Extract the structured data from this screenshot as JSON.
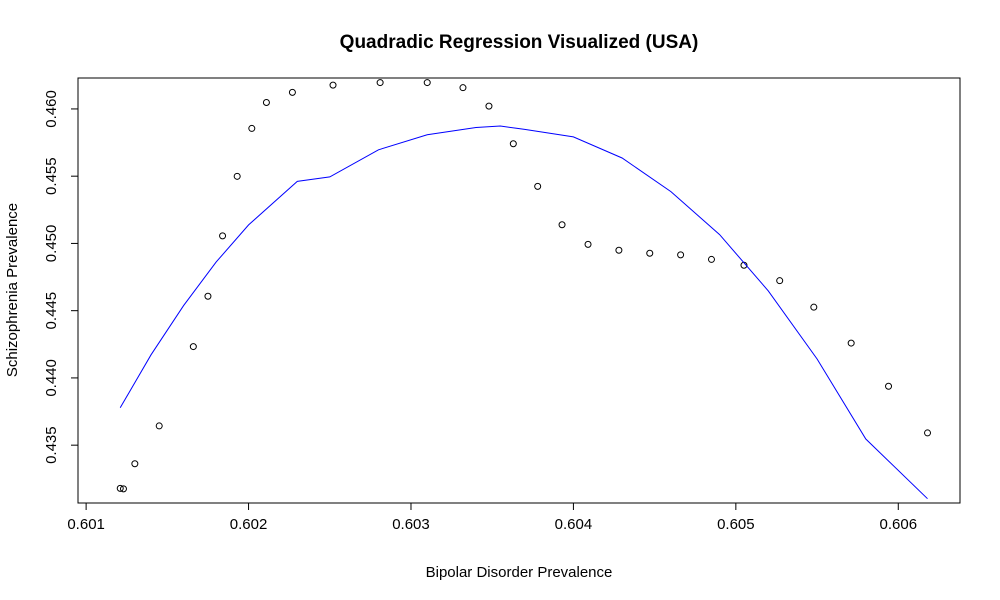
{
  "chart_data": {
    "type": "scatter",
    "title": "Quadradic Regression Visualized (USA)",
    "xlabel": "Bipolar Disorder Prevalence",
    "ylabel": "Schizophrenia Prevalence",
    "xlim": [
      0.60095,
      0.60638
    ],
    "ylim": [
      0.4307,
      0.4623
    ],
    "x_ticks": [
      0.601,
      0.602,
      0.603,
      0.604,
      0.605,
      0.606
    ],
    "x_tick_labels": [
      "0.601",
      "0.602",
      "0.603",
      "0.604",
      "0.605",
      "0.606"
    ],
    "y_ticks": [
      0.435,
      0.44,
      0.445,
      0.45,
      0.455,
      0.46
    ],
    "y_tick_labels": [
      "0.435",
      "0.440",
      "0.445",
      "0.450",
      "0.455",
      "0.460"
    ],
    "grid": false,
    "legend": "none",
    "series": [
      {
        "type": "scatter",
        "marker": "open-circle",
        "color": "#000000",
        "points": [
          [
            0.60121,
            0.43179
          ],
          [
            0.60123,
            0.43175
          ],
          [
            0.6013,
            0.43362
          ],
          [
            0.60145,
            0.43643
          ],
          [
            0.60166,
            0.44233
          ],
          [
            0.60175,
            0.44607
          ],
          [
            0.60184,
            0.45056
          ],
          [
            0.60193,
            0.45499
          ],
          [
            0.60202,
            0.45855
          ],
          [
            0.60211,
            0.46048
          ],
          [
            0.60227,
            0.46123
          ],
          [
            0.60252,
            0.46177
          ],
          [
            0.60281,
            0.46196
          ],
          [
            0.6031,
            0.46196
          ],
          [
            0.60332,
            0.46158
          ],
          [
            0.60348,
            0.46021
          ],
          [
            0.60363,
            0.45741
          ],
          [
            0.60378,
            0.45424
          ],
          [
            0.60393,
            0.45139
          ],
          [
            0.60409,
            0.44993
          ],
          [
            0.60428,
            0.44949
          ],
          [
            0.60447,
            0.44927
          ],
          [
            0.60466,
            0.44915
          ],
          [
            0.60485,
            0.44881
          ],
          [
            0.60505,
            0.44838
          ],
          [
            0.60527,
            0.44723
          ],
          [
            0.60548,
            0.44526
          ],
          [
            0.60571,
            0.44259
          ],
          [
            0.60594,
            0.43938
          ],
          [
            0.60618,
            0.43591
          ]
        ]
      },
      {
        "type": "line",
        "style": "quadratic-fit",
        "color": "#0000ff",
        "points": [
          [
            0.60121,
            0.43778
          ],
          [
            0.6014,
            0.44173
          ],
          [
            0.6016,
            0.44538
          ],
          [
            0.6018,
            0.44861
          ],
          [
            0.602,
            0.45138
          ],
          [
            0.6023,
            0.45461
          ],
          [
            0.6025,
            0.45495
          ],
          [
            0.6028,
            0.45696
          ],
          [
            0.6031,
            0.45808
          ],
          [
            0.6034,
            0.45862
          ],
          [
            0.60355,
            0.45873
          ],
          [
            0.6037,
            0.45848
          ],
          [
            0.604,
            0.45792
          ],
          [
            0.6043,
            0.45635
          ],
          [
            0.6046,
            0.45385
          ],
          [
            0.6049,
            0.45066
          ],
          [
            0.6052,
            0.44647
          ],
          [
            0.6055,
            0.44141
          ],
          [
            0.6058,
            0.43546
          ],
          [
            0.60618,
            0.43102
          ]
        ]
      }
    ]
  }
}
